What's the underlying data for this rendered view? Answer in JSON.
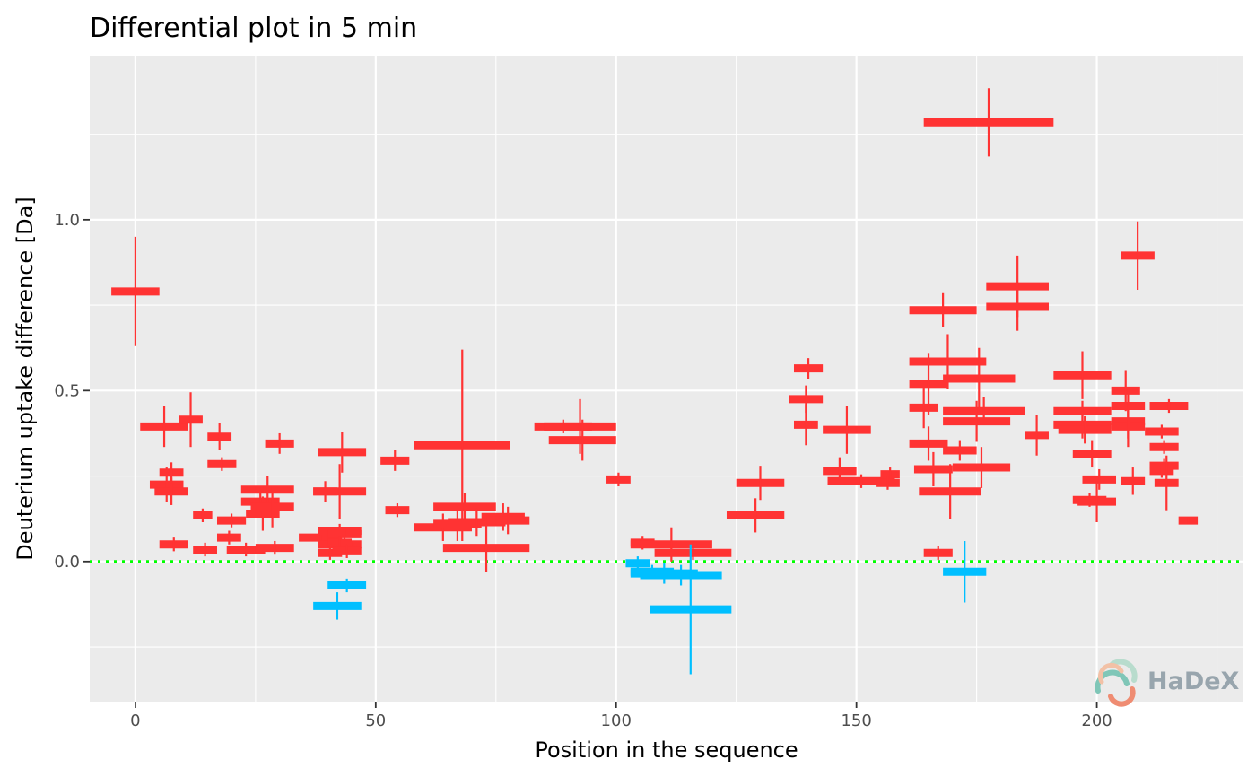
{
  "chart_data": {
    "type": "errorbar-segments",
    "title": "Differential plot in 5 min",
    "xlabel": "Position in the sequence",
    "ylabel": "Deuterium uptake difference [Da]",
    "xlim": [
      -9.5,
      230.5
    ],
    "ylim": [
      -0.41,
      1.48
    ],
    "x_ticks": [
      0,
      50,
      100,
      150,
      200
    ],
    "x_tick_labels": [
      "0",
      "50",
      "100",
      "150",
      "200"
    ],
    "y_ticks": [
      0.0,
      0.5,
      1.0
    ],
    "y_tick_labels": [
      "0.0",
      "0.5",
      "1.0"
    ],
    "reference_line": {
      "y": 0,
      "color": "#00ff00",
      "style": "dotted"
    },
    "colors": {
      "positive": "#ff3333",
      "negative": "#00bfff",
      "panel": "#ebebeb",
      "grid": "#ffffff"
    },
    "segments": [
      {
        "start": -5.0,
        "end": 5.0,
        "diff": 0.79,
        "err": 0.16
      },
      {
        "start": 1.0,
        "end": 11.0,
        "diff": 0.395,
        "err": 0.06
      },
      {
        "start": 3.0,
        "end": 10.0,
        "diff": 0.225,
        "err": 0.05
      },
      {
        "start": 4.0,
        "end": 11.0,
        "diff": 0.205,
        "err": 0.04
      },
      {
        "start": 5.0,
        "end": 10.0,
        "diff": 0.26,
        "err": 0.03
      },
      {
        "start": 5.0,
        "end": 11.0,
        "diff": 0.05,
        "err": 0.02
      },
      {
        "start": 9.0,
        "end": 14.0,
        "diff": 0.415,
        "err": 0.08
      },
      {
        "start": 12.0,
        "end": 16.0,
        "diff": 0.135,
        "err": 0.02
      },
      {
        "start": 12.0,
        "end": 17.0,
        "diff": 0.035,
        "err": 0.02
      },
      {
        "start": 15.0,
        "end": 20.0,
        "diff": 0.365,
        "err": 0.04
      },
      {
        "start": 15.0,
        "end": 21.0,
        "diff": 0.285,
        "err": 0.02
      },
      {
        "start": 17.0,
        "end": 22.0,
        "diff": 0.07,
        "err": 0.02
      },
      {
        "start": 17.0,
        "end": 23.0,
        "diff": 0.12,
        "err": 0.02
      },
      {
        "start": 19.0,
        "end": 27.0,
        "diff": 0.035,
        "err": 0.02
      },
      {
        "start": 22.0,
        "end": 30.0,
        "diff": 0.175,
        "err": 0.04
      },
      {
        "start": 22.0,
        "end": 33.0,
        "diff": 0.21,
        "err": 0.04
      },
      {
        "start": 23.0,
        "end": 30.0,
        "diff": 0.14,
        "err": 0.05
      },
      {
        "start": 24.0,
        "end": 33.0,
        "diff": 0.16,
        "err": 0.06
      },
      {
        "start": 25.0,
        "end": 33.0,
        "diff": 0.04,
        "err": 0.02
      },
      {
        "start": 27.0,
        "end": 33.0,
        "diff": 0.345,
        "err": 0.03
      },
      {
        "start": 34.0,
        "end": 43.0,
        "diff": 0.07,
        "err": 0.03
      },
      {
        "start": 37.0,
        "end": 42.0,
        "diff": 0.205,
        "err": 0.03
      },
      {
        "start": 37.0,
        "end": 48.0,
        "diff": 0.205,
        "err": 0.08
      },
      {
        "start": 38.0,
        "end": 48.0,
        "diff": 0.32,
        "err": 0.06
      },
      {
        "start": 38.0,
        "end": 47.0,
        "diff": 0.09,
        "err": 0.02
      },
      {
        "start": 38.0,
        "end": 47.0,
        "diff": 0.05,
        "err": 0.02
      },
      {
        "start": 38.0,
        "end": 43.0,
        "diff": 0.025,
        "err": 0.02
      },
      {
        "start": 40.0,
        "end": 47.0,
        "diff": 0.08,
        "err": 0.02
      },
      {
        "start": 40.0,
        "end": 45.0,
        "diff": 0.055,
        "err": 0.02
      },
      {
        "start": 41.0,
        "end": 47.0,
        "diff": 0.03,
        "err": 0.02
      },
      {
        "start": 37.0,
        "end": 47.0,
        "diff": -0.13,
        "err": 0.04
      },
      {
        "start": 40.0,
        "end": 48.0,
        "diff": -0.07,
        "err": 0.02
      },
      {
        "start": 51.0,
        "end": 57.0,
        "diff": 0.295,
        "err": 0.03
      },
      {
        "start": 52.0,
        "end": 57.0,
        "diff": 0.15,
        "err": 0.02
      },
      {
        "start": 58.0,
        "end": 78.0,
        "diff": 0.34,
        "err": 0.28
      },
      {
        "start": 58.0,
        "end": 70.0,
        "diff": 0.1,
        "err": 0.04
      },
      {
        "start": 62.0,
        "end": 75.0,
        "diff": 0.16,
        "err": 0.04
      },
      {
        "start": 62.0,
        "end": 72.0,
        "diff": 0.11,
        "err": 0.05
      },
      {
        "start": 64.0,
        "end": 82.0,
        "diff": 0.04,
        "err": 0.07
      },
      {
        "start": 65.0,
        "end": 77.0,
        "diff": 0.115,
        "err": 0.04
      },
      {
        "start": 72.0,
        "end": 81.0,
        "diff": 0.13,
        "err": 0.04
      },
      {
        "start": 73.0,
        "end": 82.0,
        "diff": 0.12,
        "err": 0.04
      },
      {
        "start": 83.0,
        "end": 95.0,
        "diff": 0.395,
        "err": 0.02
      },
      {
        "start": 85.0,
        "end": 100.0,
        "diff": 0.395,
        "err": 0.08
      },
      {
        "start": 86.0,
        "end": 100.0,
        "diff": 0.355,
        "err": 0.06
      },
      {
        "start": 98.0,
        "end": 103.0,
        "diff": 0.24,
        "err": 0.02
      },
      {
        "start": 103.0,
        "end": 108.0,
        "diff": 0.055,
        "err": 0.02
      },
      {
        "start": 103.0,
        "end": 120.0,
        "diff": 0.05,
        "err": 0.05
      },
      {
        "start": 108.0,
        "end": 124.0,
        "diff": 0.025,
        "err": 0.02
      },
      {
        "start": 102.0,
        "end": 107.0,
        "diff": -0.005,
        "err": 0.02
      },
      {
        "start": 103.0,
        "end": 112.0,
        "diff": -0.03,
        "err": 0.02
      },
      {
        "start": 103.0,
        "end": 117.0,
        "diff": -0.035,
        "err": 0.03
      },
      {
        "start": 105.0,
        "end": 122.0,
        "diff": -0.04,
        "err": 0.03
      },
      {
        "start": 107.0,
        "end": 124.0,
        "diff": -0.14,
        "err": 0.19
      },
      {
        "start": 125.0,
        "end": 135.0,
        "diff": 0.23,
        "err": 0.05
      },
      {
        "start": 123.0,
        "end": 135.0,
        "diff": 0.135,
        "err": 0.05
      },
      {
        "start": 137.0,
        "end": 143.0,
        "diff": 0.565,
        "err": 0.03
      },
      {
        "start": 136.0,
        "end": 143.0,
        "diff": 0.475,
        "err": 0.04
      },
      {
        "start": 137.0,
        "end": 142.0,
        "diff": 0.4,
        "err": 0.06
      },
      {
        "start": 143.0,
        "end": 153.0,
        "diff": 0.385,
        "err": 0.07
      },
      {
        "start": 143.0,
        "end": 150.0,
        "diff": 0.265,
        "err": 0.04
      },
      {
        "start": 144.0,
        "end": 158.0,
        "diff": 0.235,
        "err": 0.02
      },
      {
        "start": 155.0,
        "end": 159.0,
        "diff": 0.255,
        "err": 0.02
      },
      {
        "start": 154.0,
        "end": 159.0,
        "diff": 0.23,
        "err": 0.02
      },
      {
        "start": 161.0,
        "end": 175.0,
        "diff": 0.735,
        "err": 0.05
      },
      {
        "start": 161.0,
        "end": 177.0,
        "diff": 0.585,
        "err": 0.08
      },
      {
        "start": 161.0,
        "end": 169.0,
        "diff": 0.52,
        "err": 0.09
      },
      {
        "start": 161.0,
        "end": 167.0,
        "diff": 0.45,
        "err": 0.06
      },
      {
        "start": 161.0,
        "end": 169.0,
        "diff": 0.345,
        "err": 0.05
      },
      {
        "start": 162.0,
        "end": 170.0,
        "diff": 0.27,
        "err": 0.05
      },
      {
        "start": 163.0,
        "end": 176.0,
        "diff": 0.205,
        "err": 0.08
      },
      {
        "start": 164.0,
        "end": 170.0,
        "diff": 0.025,
        "err": 0.02
      },
      {
        "start": 164.0,
        "end": 191.0,
        "diff": 1.285,
        "err": 0.1
      },
      {
        "start": 168.0,
        "end": 183.0,
        "diff": 0.535,
        "err": 0.09
      },
      {
        "start": 168.0,
        "end": 175.0,
        "diff": 0.325,
        "err": 0.03
      },
      {
        "start": 168.0,
        "end": 185.0,
        "diff": 0.44,
        "err": 0.04
      },
      {
        "start": 168.0,
        "end": 182.0,
        "diff": 0.41,
        "err": 0.06
      },
      {
        "start": 170.0,
        "end": 182.0,
        "diff": 0.275,
        "err": 0.06
      },
      {
        "start": 168.0,
        "end": 177.0,
        "diff": -0.03,
        "err": 0.09
      },
      {
        "start": 177.0,
        "end": 190.0,
        "diff": 0.805,
        "err": 0.09
      },
      {
        "start": 177.0,
        "end": 190.0,
        "diff": 0.745,
        "err": 0.07
      },
      {
        "start": 185.0,
        "end": 190.0,
        "diff": 0.37,
        "err": 0.06
      },
      {
        "start": 191.0,
        "end": 203.0,
        "diff": 0.545,
        "err": 0.07
      },
      {
        "start": 191.0,
        "end": 203.0,
        "diff": 0.44,
        "err": 0.03
      },
      {
        "start": 191.0,
        "end": 203.0,
        "diff": 0.4,
        "err": 0.04
      },
      {
        "start": 192.0,
        "end": 203.0,
        "diff": 0.385,
        "err": 0.04
      },
      {
        "start": 195.0,
        "end": 203.0,
        "diff": 0.315,
        "err": 0.04
      },
      {
        "start": 197.0,
        "end": 204.0,
        "diff": 0.24,
        "err": 0.03
      },
      {
        "start": 195.0,
        "end": 202.0,
        "diff": 0.18,
        "err": 0.02
      },
      {
        "start": 196.0,
        "end": 204.0,
        "diff": 0.175,
        "err": 0.06
      },
      {
        "start": 205.0,
        "end": 212.0,
        "diff": 0.895,
        "err": 0.1
      },
      {
        "start": 203.0,
        "end": 209.0,
        "diff": 0.5,
        "err": 0.06
      },
      {
        "start": 203.0,
        "end": 210.0,
        "diff": 0.455,
        "err": 0.05
      },
      {
        "start": 203.0,
        "end": 210.0,
        "diff": 0.41,
        "err": 0.05
      },
      {
        "start": 203.0,
        "end": 210.0,
        "diff": 0.395,
        "err": 0.06
      },
      {
        "start": 205.0,
        "end": 210.0,
        "diff": 0.235,
        "err": 0.04
      },
      {
        "start": 210.0,
        "end": 217.0,
        "diff": 0.38,
        "err": 0.02
      },
      {
        "start": 211.0,
        "end": 217.0,
        "diff": 0.335,
        "err": 0.02
      },
      {
        "start": 211.0,
        "end": 217.0,
        "diff": 0.28,
        "err": 0.02
      },
      {
        "start": 211.0,
        "end": 216.0,
        "diff": 0.265,
        "err": 0.02
      },
      {
        "start": 212.0,
        "end": 217.0,
        "diff": 0.23,
        "err": 0.08
      },
      {
        "start": 211.0,
        "end": 219.0,
        "diff": 0.455,
        "err": 0.02
      },
      {
        "start": 217.0,
        "end": 221.0,
        "diff": 0.12,
        "err": 0.01
      }
    ]
  },
  "logo": {
    "text": "HaDeX"
  }
}
